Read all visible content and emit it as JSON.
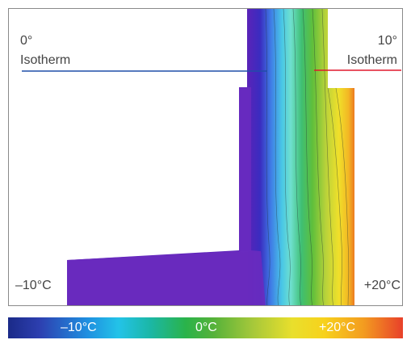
{
  "diagram": {
    "left_isotherm": {
      "degree": "0°",
      "label": "Isotherm",
      "color": "#1f4fa8"
    },
    "right_isotherm": {
      "degree": "10°",
      "label": "Isotherm",
      "color": "#e0182d"
    },
    "outside_temp": "–10°C",
    "inside_temp": "+20°C"
  },
  "color_scale": {
    "labels": [
      "–10°C",
      "0°C",
      "+20°C"
    ],
    "colors": [
      "#1a2a88",
      "#1f8fe0",
      "#2ab34a",
      "#e9df2c",
      "#f39c20",
      "#e8402a"
    ]
  }
}
